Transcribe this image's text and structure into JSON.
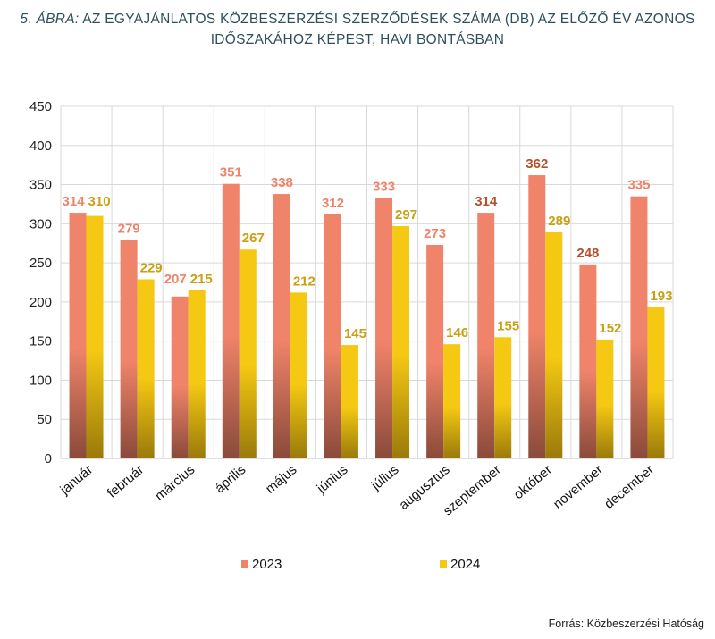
{
  "title": {
    "lead": "5. ÁBRA:",
    "line1": "AZ EGYAJÁNLATOS KÖZBESZERZÉSI SZERZŐDÉSEK SZÁMA (DB) AZ ELŐZŐ ÉV AZONOS",
    "line2": "IDŐSZAKÁHOZ KÉPEST, HAVI BONTÁSBAN"
  },
  "source": "Forrás: Közbeszerzési Hatóság",
  "colors": {
    "series_2023_top": "#f0846a",
    "series_2023_bottom": "#8a4a3a",
    "series_2024_top": "#f5c913",
    "series_2024_bottom": "#9a7a0a",
    "label_2023": "#f0846a",
    "label_2024": "#c8a012",
    "label_2023_dark": "#b5502a",
    "title": "#2e4f5c",
    "grid": "#d9d9d9"
  },
  "chart_data": {
    "type": "bar",
    "categories": [
      "január",
      "február",
      "március",
      "április",
      "május",
      "június",
      "július",
      "augusztus",
      "szeptember",
      "október",
      "november",
      "december"
    ],
    "series": [
      {
        "name": "2023",
        "values": [
          314,
          279,
          207,
          351,
          338,
          312,
          333,
          273,
          314,
          362,
          248,
          335
        ]
      },
      {
        "name": "2024",
        "values": [
          310,
          229,
          215,
          267,
          212,
          145,
          297,
          146,
          155,
          289,
          152,
          193
        ]
      }
    ],
    "ylim": [
      0,
      450
    ],
    "yticks": [
      0,
      50,
      100,
      150,
      200,
      250,
      300,
      350,
      400,
      450
    ],
    "grid": true,
    "legend": "bottom"
  }
}
